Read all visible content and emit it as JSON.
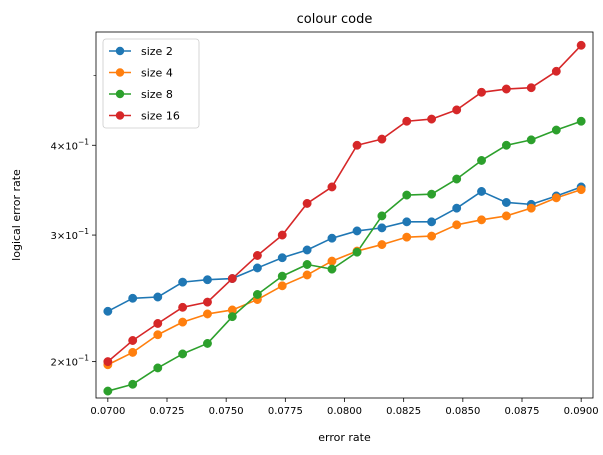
{
  "chart_data": {
    "type": "line",
    "title": "colour code",
    "xlabel": "error rate",
    "ylabel": "logical error rate",
    "y_scale": "log",
    "xlim": [
      0.0695,
      0.0905
    ],
    "ylim": [
      0.178,
      0.575
    ],
    "x_ticks": [
      0.07,
      0.0725,
      0.075,
      0.0775,
      0.08,
      0.0825,
      0.085,
      0.0875,
      0.09
    ],
    "x_tick_labels": [
      "0.0700",
      "0.0725",
      "0.0750",
      "0.0775",
      "0.0800",
      "0.0825",
      "0.0850",
      "0.0875",
      "0.0900"
    ],
    "y_major_ticks": [
      0.2,
      0.3,
      0.4
    ],
    "y_major_tick_labels": [
      {
        "mantissa": "2",
        "base": "10",
        "exponent": "−1"
      },
      {
        "mantissa": "3",
        "base": "10",
        "exponent": "−1"
      },
      {
        "mantissa": "4",
        "base": "10",
        "exponent": "−1"
      }
    ],
    "y_minor_ticks": [
      0.5
    ],
    "grid": false,
    "legend_position": "top-left",
    "x": [
      0.07,
      0.07105,
      0.07211,
      0.07316,
      0.07421,
      0.07526,
      0.07632,
      0.07737,
      0.07842,
      0.07947,
      0.08053,
      0.08158,
      0.08263,
      0.08368,
      0.08474,
      0.08579,
      0.08684,
      0.08789,
      0.08895,
      0.09
    ],
    "series": [
      {
        "name": "size 2",
        "color": "#1f77b4",
        "values": [
          0.235,
          0.245,
          0.246,
          0.258,
          0.26,
          0.261,
          0.27,
          0.279,
          0.286,
          0.297,
          0.304,
          0.307,
          0.313,
          0.313,
          0.327,
          0.345,
          0.333,
          0.331,
          0.34,
          0.35
        ]
      },
      {
        "name": "size 4",
        "color": "#ff7f0e",
        "values": [
          0.198,
          0.206,
          0.218,
          0.227,
          0.233,
          0.236,
          0.244,
          0.255,
          0.264,
          0.276,
          0.285,
          0.291,
          0.298,
          0.299,
          0.31,
          0.315,
          0.319,
          0.327,
          0.338,
          0.347
        ]
      },
      {
        "name": "size 8",
        "color": "#2ca02c",
        "values": [
          0.182,
          0.186,
          0.196,
          0.205,
          0.212,
          0.231,
          0.248,
          0.263,
          0.273,
          0.269,
          0.284,
          0.319,
          0.341,
          0.342,
          0.359,
          0.381,
          0.4,
          0.407,
          0.42,
          0.432
        ]
      },
      {
        "name": "size 16",
        "color": "#d62728",
        "values": [
          0.2,
          0.214,
          0.226,
          0.238,
          0.242,
          0.261,
          0.281,
          0.3,
          0.332,
          0.35,
          0.4,
          0.408,
          0.432,
          0.435,
          0.448,
          0.474,
          0.479,
          0.481,
          0.507,
          0.551
        ]
      }
    ]
  }
}
